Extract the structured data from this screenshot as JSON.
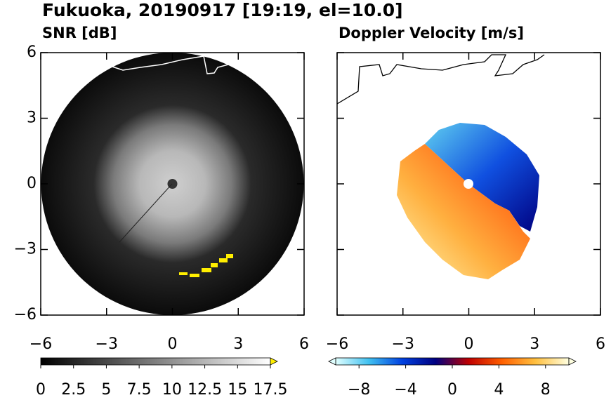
{
  "title": "Fukuoka, 20190917 [19:19, el=10.0]",
  "chart_data": [
    {
      "type": "image",
      "title": "SNR [dB]",
      "xlim": [
        -6,
        6
      ],
      "ylim": [
        -6,
        6
      ],
      "xticks": [
        {
          "value": -6,
          "label": "−6"
        },
        {
          "value": -3,
          "label": "−3"
        },
        0,
        3,
        6
      ],
      "yticks": [
        {
          "value": -6,
          "label": "−6"
        },
        {
          "value": -3,
          "label": "−3"
        },
        0,
        3,
        6
      ],
      "colorbar": {
        "lim": [
          0,
          17.5
        ],
        "extend": "max",
        "colormap": [
          "#000000",
          "#ffffff"
        ],
        "ticks": [
          0,
          2.5,
          5,
          7.5,
          10,
          12.5,
          15,
          17.5
        ]
      }
    },
    {
      "type": "image",
      "title": "Doppler Velocity [m/s]",
      "xlim": [
        -6,
        6
      ],
      "ylim": [
        -6,
        6
      ],
      "xticks": [
        {
          "value": -6,
          "label": "−6"
        },
        {
          "value": -3,
          "label": "−3"
        },
        0,
        3,
        6
      ],
      "yticks": [
        {
          "value": -6,
          "label": "−6"
        },
        {
          "value": -3,
          "label": "−3"
        },
        0,
        3,
        6
      ],
      "colorbar": {
        "lim": [
          -10,
          10
        ],
        "extend": "both",
        "colormap": [
          "#e0ffff",
          "#40c0f0",
          "#0040e0",
          "#000080",
          "#c00000",
          "#ff6000",
          "#ffc040",
          "#ffffe0"
        ],
        "ticks": [
          {
            "value": -8,
            "label": "−8"
          },
          {
            "value": -4,
            "label": "−4"
          },
          0,
          4,
          8
        ]
      }
    }
  ]
}
